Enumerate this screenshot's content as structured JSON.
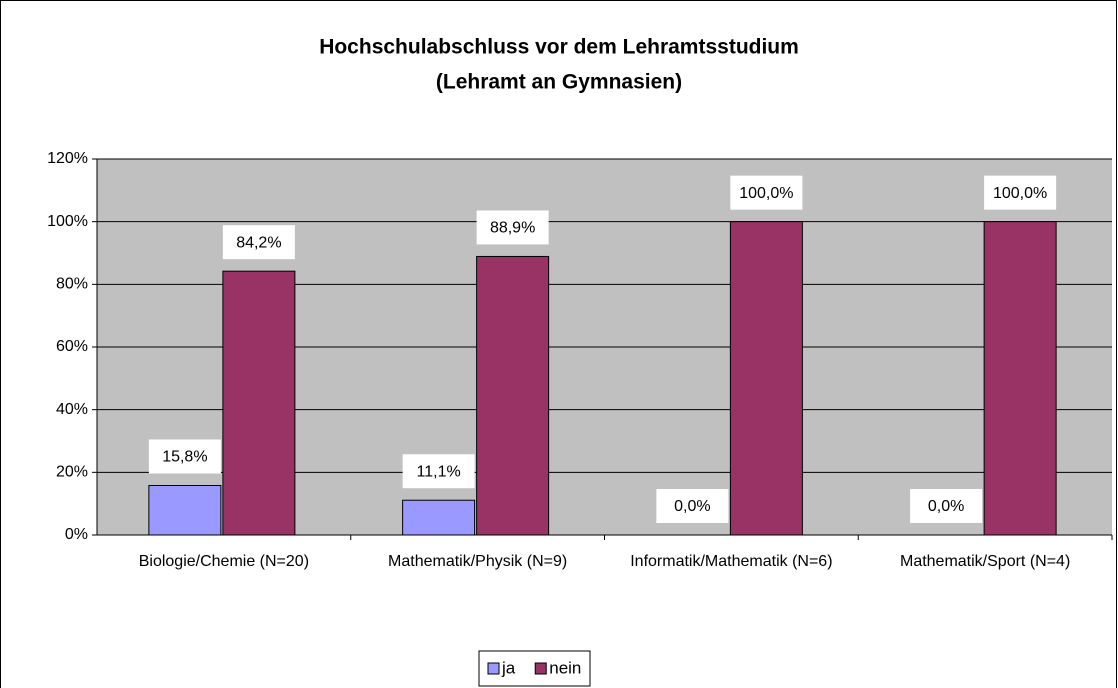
{
  "chart_data": {
    "type": "bar",
    "title": "Hochschulabschluss vor dem Lehramtsstudium",
    "subtitle": "(Lehramt an Gymnasien)",
    "categories": [
      "Biologie/Chemie (N=20)",
      "Mathematik/Physik (N=9)",
      "Informatik/Mathematik (N=6)",
      "Mathematik/Sport (N=4)"
    ],
    "series": [
      {
        "name": "ja",
        "color": "#9999ff",
        "values": [
          15.8,
          11.1,
          0,
          0
        ],
        "value_labels": [
          "15,8%",
          "11,1%",
          "0,0%",
          "0,0%"
        ]
      },
      {
        "name": "nein",
        "color": "#993366",
        "values": [
          84.2,
          88.9,
          100,
          100
        ],
        "value_labels": [
          "84,2%",
          "88,9%",
          "100,0%",
          "100,0%"
        ]
      }
    ],
    "ylim": [
      0,
      120
    ],
    "yticks": [
      {
        "value": 0,
        "label": "0%"
      },
      {
        "value": 20,
        "label": "20%"
      },
      {
        "value": 40,
        "label": "40%"
      },
      {
        "value": 60,
        "label": "60%"
      },
      {
        "value": 80,
        "label": "80%"
      },
      {
        "value": 100,
        "label": "100%"
      },
      {
        "value": 120,
        "label": "120%"
      }
    ],
    "grid": true,
    "legend": "bottom"
  }
}
